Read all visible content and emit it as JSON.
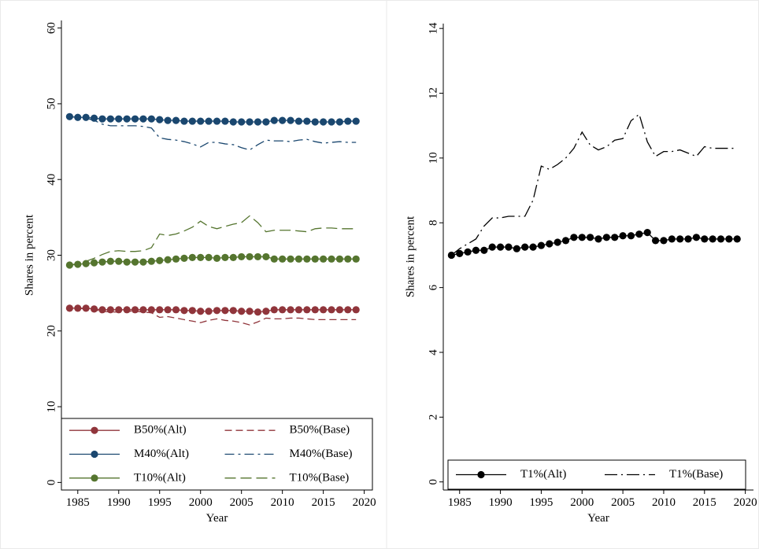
{
  "chart_data": [
    {
      "type": "line",
      "x_label": "Year",
      "y_label": "Shares in percent",
      "x": [
        1984,
        1985,
        1986,
        1987,
        1988,
        1989,
        1990,
        1991,
        1992,
        1993,
        1994,
        1995,
        1996,
        1997,
        1998,
        1999,
        2000,
        2001,
        2002,
        2003,
        2004,
        2005,
        2006,
        2007,
        2008,
        2009,
        2010,
        2011,
        2012,
        2013,
        2014,
        2015,
        2016,
        2017,
        2018,
        2019
      ],
      "xlim": [
        1983,
        2021
      ],
      "xticks": [
        1985,
        1990,
        1995,
        2000,
        2005,
        2010,
        2015,
        2020
      ],
      "ylim": [
        -1,
        61
      ],
      "yticks": [
        0,
        10,
        20,
        30,
        40,
        50,
        60
      ],
      "legend": "bottom",
      "series": [
        {
          "name": "B50%(Alt)",
          "color": "#90353b",
          "line_style": "solid",
          "marker": true,
          "values": [
            23.0,
            23.0,
            23.0,
            22.9,
            22.8,
            22.8,
            22.8,
            22.8,
            22.8,
            22.8,
            22.8,
            22.8,
            22.8,
            22.8,
            22.7,
            22.7,
            22.6,
            22.6,
            22.7,
            22.7,
            22.7,
            22.6,
            22.6,
            22.5,
            22.6,
            22.8,
            22.8,
            22.8,
            22.8,
            22.8,
            22.8,
            22.8,
            22.8,
            22.8,
            22.8,
            22.8
          ]
        },
        {
          "name": "B50%(Base)",
          "color": "#90353b",
          "line_style": "dash",
          "marker": false,
          "values": [
            23.0,
            23.0,
            22.9,
            22.8,
            22.6,
            22.5,
            22.5,
            22.6,
            22.6,
            22.5,
            22.4,
            21.8,
            21.9,
            21.7,
            21.5,
            21.3,
            21.1,
            21.4,
            21.6,
            21.4,
            21.3,
            21.1,
            20.8,
            21.2,
            21.7,
            21.6,
            21.6,
            21.7,
            21.7,
            21.6,
            21.5,
            21.5,
            21.5,
            21.5,
            21.5,
            21.5
          ]
        },
        {
          "name": "M40%(Alt)",
          "color": "#1a476f",
          "line_style": "solid",
          "marker": true,
          "values": [
            48.3,
            48.2,
            48.2,
            48.1,
            48.0,
            48.0,
            48.0,
            48.0,
            48.0,
            48.0,
            48.0,
            47.9,
            47.8,
            47.8,
            47.7,
            47.7,
            47.7,
            47.7,
            47.7,
            47.7,
            47.6,
            47.6,
            47.6,
            47.6,
            47.6,
            47.8,
            47.8,
            47.8,
            47.7,
            47.7,
            47.6,
            47.6,
            47.6,
            47.6,
            47.7,
            47.7
          ]
        },
        {
          "name": "M40%(Base)",
          "color": "#1a476f",
          "line_style": "dash-dot",
          "marker": false,
          "values": [
            48.3,
            48.2,
            48.1,
            47.8,
            47.3,
            47.1,
            47.1,
            47.1,
            47.1,
            47.0,
            46.8,
            45.5,
            45.3,
            45.2,
            45.0,
            44.7,
            44.3,
            44.9,
            44.9,
            44.7,
            44.6,
            44.2,
            43.9,
            44.6,
            45.2,
            45.1,
            45.1,
            45.0,
            45.2,
            45.3,
            45.0,
            44.8,
            44.9,
            45.0,
            44.9,
            44.9
          ]
        },
        {
          "name": "T10%(Alt)",
          "color": "#55752f",
          "line_style": "solid",
          "marker": true,
          "values": [
            28.7,
            28.8,
            28.9,
            29.0,
            29.1,
            29.2,
            29.2,
            29.1,
            29.1,
            29.1,
            29.2,
            29.3,
            29.4,
            29.5,
            29.6,
            29.7,
            29.7,
            29.7,
            29.6,
            29.7,
            29.7,
            29.8,
            29.8,
            29.8,
            29.8,
            29.5,
            29.5,
            29.5,
            29.5,
            29.5,
            29.5,
            29.5,
            29.5,
            29.5,
            29.5,
            29.5
          ]
        },
        {
          "name": "T10%(Base)",
          "color": "#55752f",
          "line_style": "long-dash",
          "marker": false,
          "values": [
            28.7,
            28.9,
            29.2,
            29.6,
            30.1,
            30.5,
            30.6,
            30.5,
            30.5,
            30.6,
            31.0,
            32.8,
            32.6,
            32.8,
            33.2,
            33.7,
            34.5,
            33.8,
            33.5,
            33.8,
            34.1,
            34.3,
            35.2,
            34.3,
            33.1,
            33.3,
            33.3,
            33.3,
            33.2,
            33.1,
            33.5,
            33.6,
            33.6,
            33.5,
            33.5,
            33.5
          ]
        }
      ]
    },
    {
      "type": "line",
      "x_label": "Year",
      "y_label": "Shares in percent",
      "x": [
        1984,
        1985,
        1986,
        1987,
        1988,
        1989,
        1990,
        1991,
        1992,
        1993,
        1994,
        1995,
        1996,
        1997,
        1998,
        1999,
        2000,
        2001,
        2002,
        2003,
        2004,
        2005,
        2006,
        2007,
        2008,
        2009,
        2010,
        2011,
        2012,
        2013,
        2014,
        2015,
        2016,
        2017,
        2018,
        2019
      ],
      "xlim": [
        1983,
        2021
      ],
      "xticks": [
        1985,
        1990,
        1995,
        2000,
        2005,
        2010,
        2015,
        2020
      ],
      "ylim": [
        -0.25,
        14.15
      ],
      "yticks": [
        0,
        2,
        4,
        6,
        8,
        10,
        12,
        14
      ],
      "legend": "bottom",
      "series": [
        {
          "name": "T1%(Alt)",
          "color": "#000000",
          "line_style": "solid",
          "marker": true,
          "values": [
            7.0,
            7.05,
            7.1,
            7.15,
            7.15,
            7.25,
            7.25,
            7.25,
            7.2,
            7.25,
            7.25,
            7.3,
            7.35,
            7.4,
            7.45,
            7.55,
            7.55,
            7.55,
            7.5,
            7.55,
            7.55,
            7.6,
            7.6,
            7.65,
            7.7,
            7.45,
            7.45,
            7.5,
            7.5,
            7.5,
            7.55,
            7.5,
            7.5,
            7.5,
            7.5,
            7.5
          ]
        },
        {
          "name": "T1%(Base)",
          "color": "#000000",
          "line_style": "long-dash-dot",
          "marker": false,
          "values": [
            7.0,
            7.2,
            7.35,
            7.5,
            7.9,
            8.15,
            8.15,
            8.2,
            8.2,
            8.2,
            8.7,
            9.75,
            9.65,
            9.8,
            10.0,
            10.3,
            10.8,
            10.4,
            10.25,
            10.35,
            10.55,
            10.6,
            11.15,
            11.35,
            10.5,
            10.05,
            10.2,
            10.2,
            10.25,
            10.15,
            10.05,
            10.35,
            10.3,
            10.3,
            10.3,
            10.3
          ]
        }
      ]
    }
  ]
}
